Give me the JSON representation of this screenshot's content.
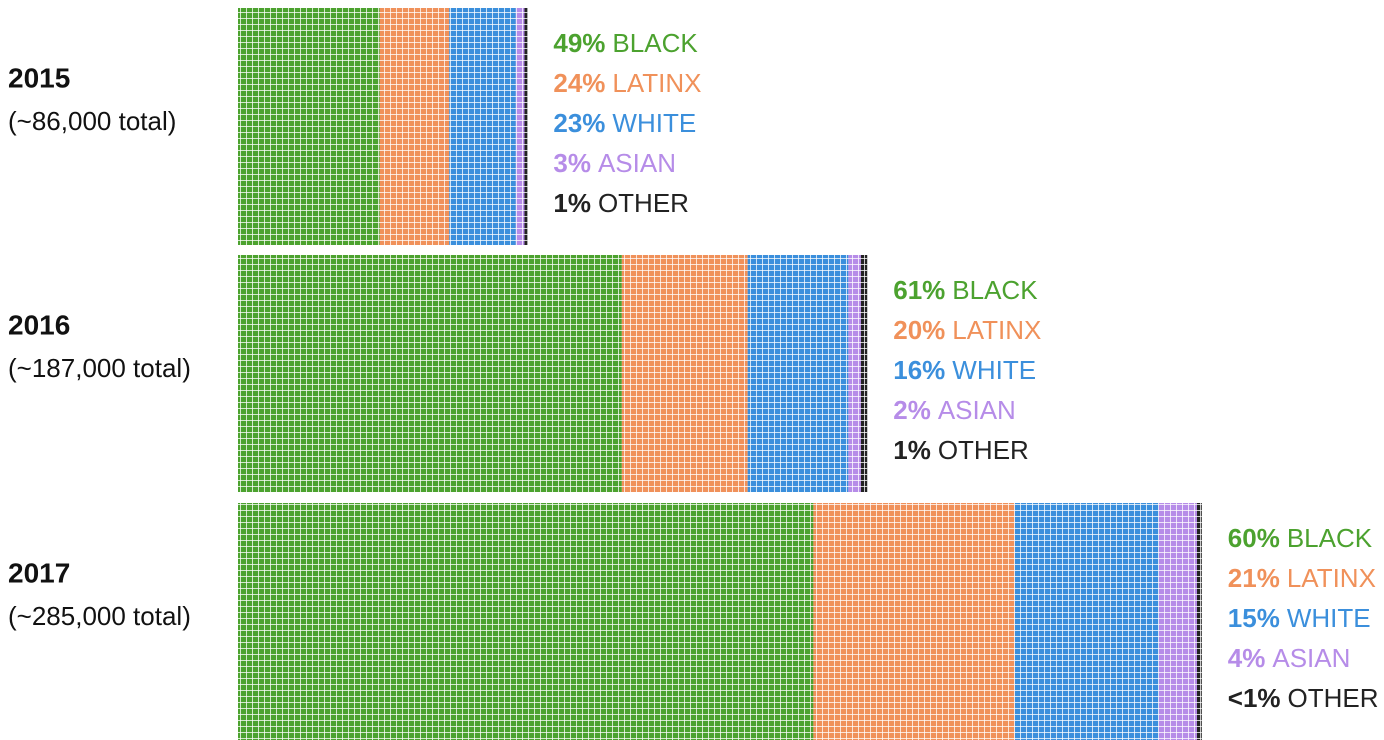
{
  "chart_data": {
    "type": "waffle",
    "categories": [
      "2015",
      "2016",
      "2017"
    ],
    "totals": [
      86000,
      187000,
      285000
    ],
    "total_labels": [
      "(~86,000 total)",
      "(~187,000 total)",
      "(~285,000 total)"
    ],
    "series": [
      {
        "name": "BLACK",
        "color": "#4ca22f",
        "values": [
          49,
          61,
          60
        ],
        "value_labels": [
          "49%",
          "61%",
          "60%"
        ]
      },
      {
        "name": "LATINX",
        "color": "#f0915a",
        "values": [
          24,
          20,
          21
        ],
        "value_labels": [
          "24%",
          "20%",
          "21%"
        ]
      },
      {
        "name": "WHITE",
        "color": "#3b8fdc",
        "values": [
          23,
          16,
          15
        ],
        "value_labels": [
          "23%",
          "16%",
          "15%"
        ]
      },
      {
        "name": "ASIAN",
        "color": "#b68ce8",
        "values": [
          3,
          2,
          4
        ],
        "value_labels": [
          "3%",
          "2%",
          "4%"
        ]
      },
      {
        "name": "OTHER",
        "color": "#222222",
        "values": [
          1,
          1,
          0.5
        ],
        "value_labels": [
          "1%",
          "1%",
          "<1%"
        ]
      }
    ]
  }
}
